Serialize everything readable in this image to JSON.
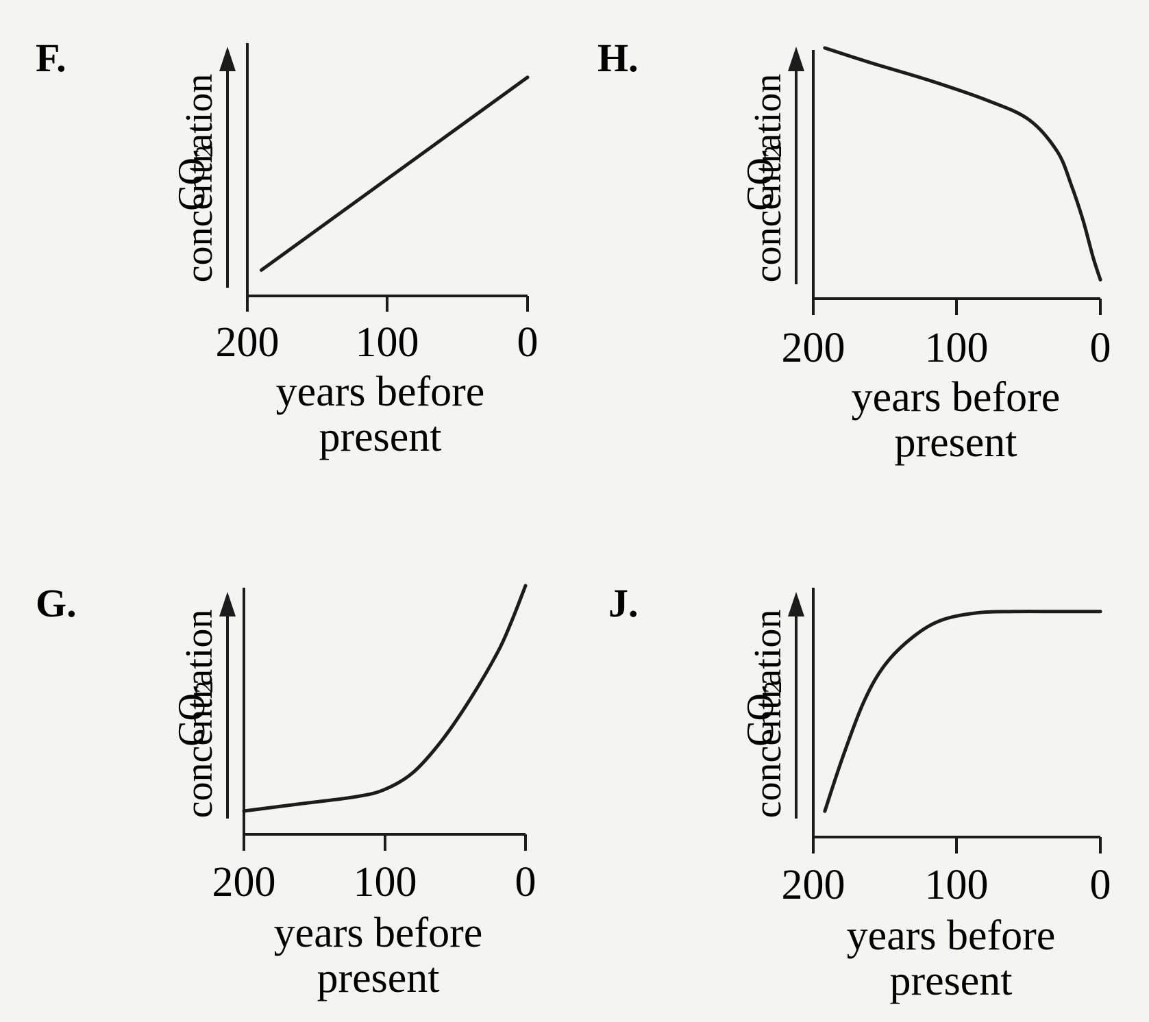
{
  "chart_data": [
    {
      "type": "line",
      "panel_label": "F.",
      "xlabel": [
        "years before",
        "present"
      ],
      "ylabel": [
        "CO",
        "2",
        "concentration"
      ],
      "x_ticks": [
        "200",
        "100",
        "0"
      ],
      "xlim": [
        200,
        0
      ],
      "ylim": [
        0,
        1
      ],
      "series": [
        {
          "x": [
            190,
            0
          ],
          "y": [
            0.08,
            0.96
          ]
        }
      ]
    },
    {
      "type": "line",
      "panel_label": "H.",
      "xlabel": [
        "years before",
        "present"
      ],
      "ylabel": [
        "CO",
        "2",
        "concentration"
      ],
      "x_ticks": [
        "200",
        "100",
        "0"
      ],
      "xlim": [
        200,
        0
      ],
      "ylim": [
        0,
        1
      ],
      "series": [
        {
          "x": [
            192,
            160,
            120,
            80,
            50,
            30,
            20,
            12,
            5,
            0
          ],
          "y": [
            1.0,
            0.94,
            0.87,
            0.79,
            0.71,
            0.58,
            0.44,
            0.3,
            0.15,
            0.06
          ]
        }
      ]
    },
    {
      "type": "line",
      "panel_label": "G.",
      "xlabel": [
        "years before",
        "present"
      ],
      "ylabel": [
        "CO",
        "2",
        "concentration"
      ],
      "x_ticks": [
        "200",
        "100",
        "0"
      ],
      "xlim": [
        200,
        0
      ],
      "ylim": [
        0,
        1
      ],
      "series": [
        {
          "x": [
            200,
            160,
            120,
            100,
            80,
            60,
            40,
            20,
            10,
            0
          ],
          "y": [
            0.06,
            0.09,
            0.12,
            0.15,
            0.22,
            0.35,
            0.52,
            0.72,
            0.85,
            1.0
          ]
        }
      ]
    },
    {
      "type": "line",
      "panel_label": "J.",
      "xlabel": [
        "years before",
        "present"
      ],
      "ylabel": [
        "CO",
        "2",
        "concentration"
      ],
      "x_ticks": [
        "200",
        "100",
        "0"
      ],
      "xlim": [
        200,
        0
      ],
      "ylim": [
        0,
        1
      ],
      "series": [
        {
          "x": [
            192,
            180,
            165,
            150,
            130,
            110,
            85,
            60,
            30,
            0
          ],
          "y": [
            0.06,
            0.28,
            0.52,
            0.68,
            0.8,
            0.87,
            0.9,
            0.905,
            0.905,
            0.905
          ]
        }
      ]
    }
  ]
}
